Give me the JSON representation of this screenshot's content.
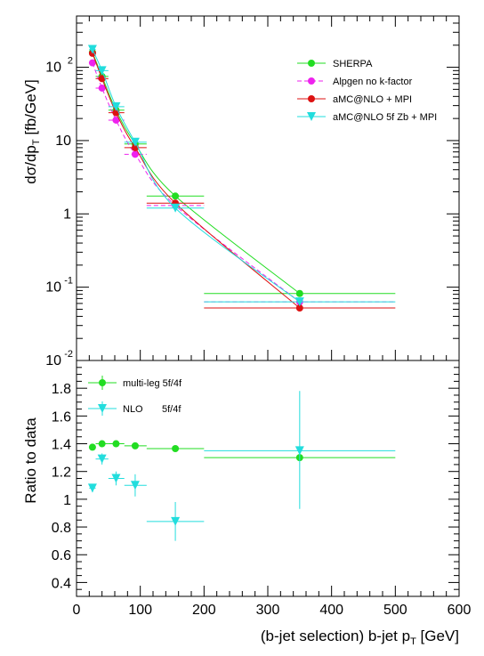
{
  "chart_data": [
    {
      "type": "scatter",
      "ylabel_main": "dσ/dp",
      "ylabel_sub": "T",
      "ylabel_unit": " [fb/GeV]",
      "yscale": "log",
      "ylim": [
        0.01,
        500
      ],
      "xlim": [
        0,
        600
      ],
      "yticks": [
        {
          "value": 0.01,
          "base": "10",
          "exp": "-2"
        },
        {
          "value": 0.1,
          "base": "10",
          "exp": "-1"
        },
        {
          "value": 1,
          "base": "1",
          "exp": ""
        },
        {
          "value": 10,
          "base": "10",
          "exp": ""
        },
        {
          "value": 100,
          "base": "10",
          "exp": "2"
        }
      ],
      "legend_position": "top-right",
      "series": [
        {
          "name": "SHERPA",
          "color": "#22dd22",
          "marker": "circle",
          "dash": "",
          "points": [
            {
              "x": 25,
              "xlo": 20,
              "xhi": 30,
              "y": 160
            },
            {
              "x": 40,
              "xlo": 30,
              "xhi": 50,
              "y": 75
            },
            {
              "x": 62,
              "xlo": 50,
              "xhi": 75,
              "y": 26
            },
            {
              "x": 92,
              "xlo": 75,
              "xhi": 110,
              "y": 9
            },
            {
              "x": 155,
              "xlo": 110,
              "xhi": 200,
              "y": 1.75
            },
            {
              "x": 350,
              "xlo": 200,
              "xhi": 500,
              "y": 0.082
            }
          ]
        },
        {
          "name": "Alpgen no k-factor",
          "color": "#ee22ee",
          "marker": "circle",
          "dash": "5,3",
          "points": [
            {
              "x": 25,
              "xlo": 20,
              "xhi": 30,
              "y": 115
            },
            {
              "x": 40,
              "xlo": 30,
              "xhi": 50,
              "y": 52
            },
            {
              "x": 62,
              "xlo": 50,
              "xhi": 75,
              "y": 19
            },
            {
              "x": 92,
              "xlo": 75,
              "xhi": 110,
              "y": 6.5
            },
            {
              "x": 155,
              "xlo": 110,
              "xhi": 200,
              "y": 1.3
            },
            {
              "x": 350,
              "xlo": 200,
              "xhi": 500,
              "y": 0.063
            }
          ]
        },
        {
          "name": "aMC@NLO + MPI",
          "color": "#dd1111",
          "marker": "circle",
          "dash": "",
          "points": [
            {
              "x": 25,
              "xlo": 20,
              "xhi": 30,
              "y": 155
            },
            {
              "x": 40,
              "xlo": 30,
              "xhi": 50,
              "y": 70
            },
            {
              "x": 62,
              "xlo": 50,
              "xhi": 75,
              "y": 24
            },
            {
              "x": 92,
              "xlo": 75,
              "xhi": 110,
              "y": 8
            },
            {
              "x": 155,
              "xlo": 110,
              "xhi": 200,
              "y": 1.4
            },
            {
              "x": 350,
              "xlo": 200,
              "xhi": 500,
              "y": 0.052
            }
          ]
        },
        {
          "name": "aMC@NLO 5f Zb + MPI",
          "color": "#22dddd",
          "marker": "triangle-down",
          "dash": "",
          "points": [
            {
              "x": 25,
              "xlo": 20,
              "xhi": 30,
              "y": 175
            },
            {
              "x": 40,
              "xlo": 30,
              "xhi": 50,
              "y": 90
            },
            {
              "x": 62,
              "xlo": 50,
              "xhi": 75,
              "y": 29
            },
            {
              "x": 92,
              "xlo": 75,
              "xhi": 110,
              "y": 9.5
            },
            {
              "x": 155,
              "xlo": 110,
              "xhi": 200,
              "y": 1.2
            },
            {
              "x": 350,
              "xlo": 200,
              "xhi": 500,
              "y": 0.063
            }
          ]
        }
      ]
    },
    {
      "type": "scatter",
      "ylabel": "Ratio to data",
      "xlabel_main": "(b-jet selection) b-jet p",
      "xlabel_sub": "T",
      "xlabel_unit": " [GeV]",
      "xlim": [
        0,
        600
      ],
      "ylim": [
        0.3,
        2.0
      ],
      "xticks": [
        "0",
        "100",
        "200",
        "300",
        "400",
        "500",
        "600"
      ],
      "yticks": [
        "0.4",
        "0.6",
        "0.8",
        "1",
        "1.2",
        "1.4",
        "1.6",
        "1.8"
      ],
      "legend_position": "top-left",
      "series": [
        {
          "name": "multi-leg 5f/4f",
          "color": "#22dd22",
          "marker": "circle",
          "points": [
            {
              "x": 25,
              "xlo": 20,
              "xhi": 30,
              "y": 1.375,
              "ylo": 1.36,
              "yhi": 1.39
            },
            {
              "x": 40,
              "xlo": 30,
              "xhi": 50,
              "y": 1.4,
              "ylo": 1.385,
              "yhi": 1.415
            },
            {
              "x": 62,
              "xlo": 50,
              "xhi": 75,
              "y": 1.4,
              "ylo": 1.385,
              "yhi": 1.415
            },
            {
              "x": 92,
              "xlo": 75,
              "xhi": 110,
              "y": 1.385,
              "ylo": 1.37,
              "yhi": 1.4
            },
            {
              "x": 155,
              "xlo": 110,
              "xhi": 200,
              "y": 1.365,
              "ylo": 1.355,
              "yhi": 1.375
            },
            {
              "x": 350,
              "xlo": 200,
              "xhi": 500,
              "y": 1.3,
              "ylo": 1.285,
              "yhi": 1.315
            }
          ]
        },
        {
          "name": "NLO       5f/4f",
          "color": "#22dddd",
          "marker": "triangle-down",
          "points": [
            {
              "x": 25,
              "xlo": 20,
              "xhi": 30,
              "y": 1.08,
              "ylo": 1.05,
              "yhi": 1.11
            },
            {
              "x": 40,
              "xlo": 30,
              "xhi": 50,
              "y": 1.29,
              "ylo": 1.25,
              "yhi": 1.33
            },
            {
              "x": 62,
              "xlo": 50,
              "xhi": 75,
              "y": 1.15,
              "ylo": 1.1,
              "yhi": 1.2
            },
            {
              "x": 92,
              "xlo": 75,
              "xhi": 110,
              "y": 1.1,
              "ylo": 1.02,
              "yhi": 1.18
            },
            {
              "x": 155,
              "xlo": 110,
              "xhi": 200,
              "y": 0.84,
              "ylo": 0.7,
              "yhi": 0.98
            },
            {
              "x": 350,
              "xlo": 200,
              "xhi": 500,
              "y": 1.35,
              "ylo": 0.93,
              "yhi": 1.78
            }
          ]
        }
      ]
    }
  ]
}
